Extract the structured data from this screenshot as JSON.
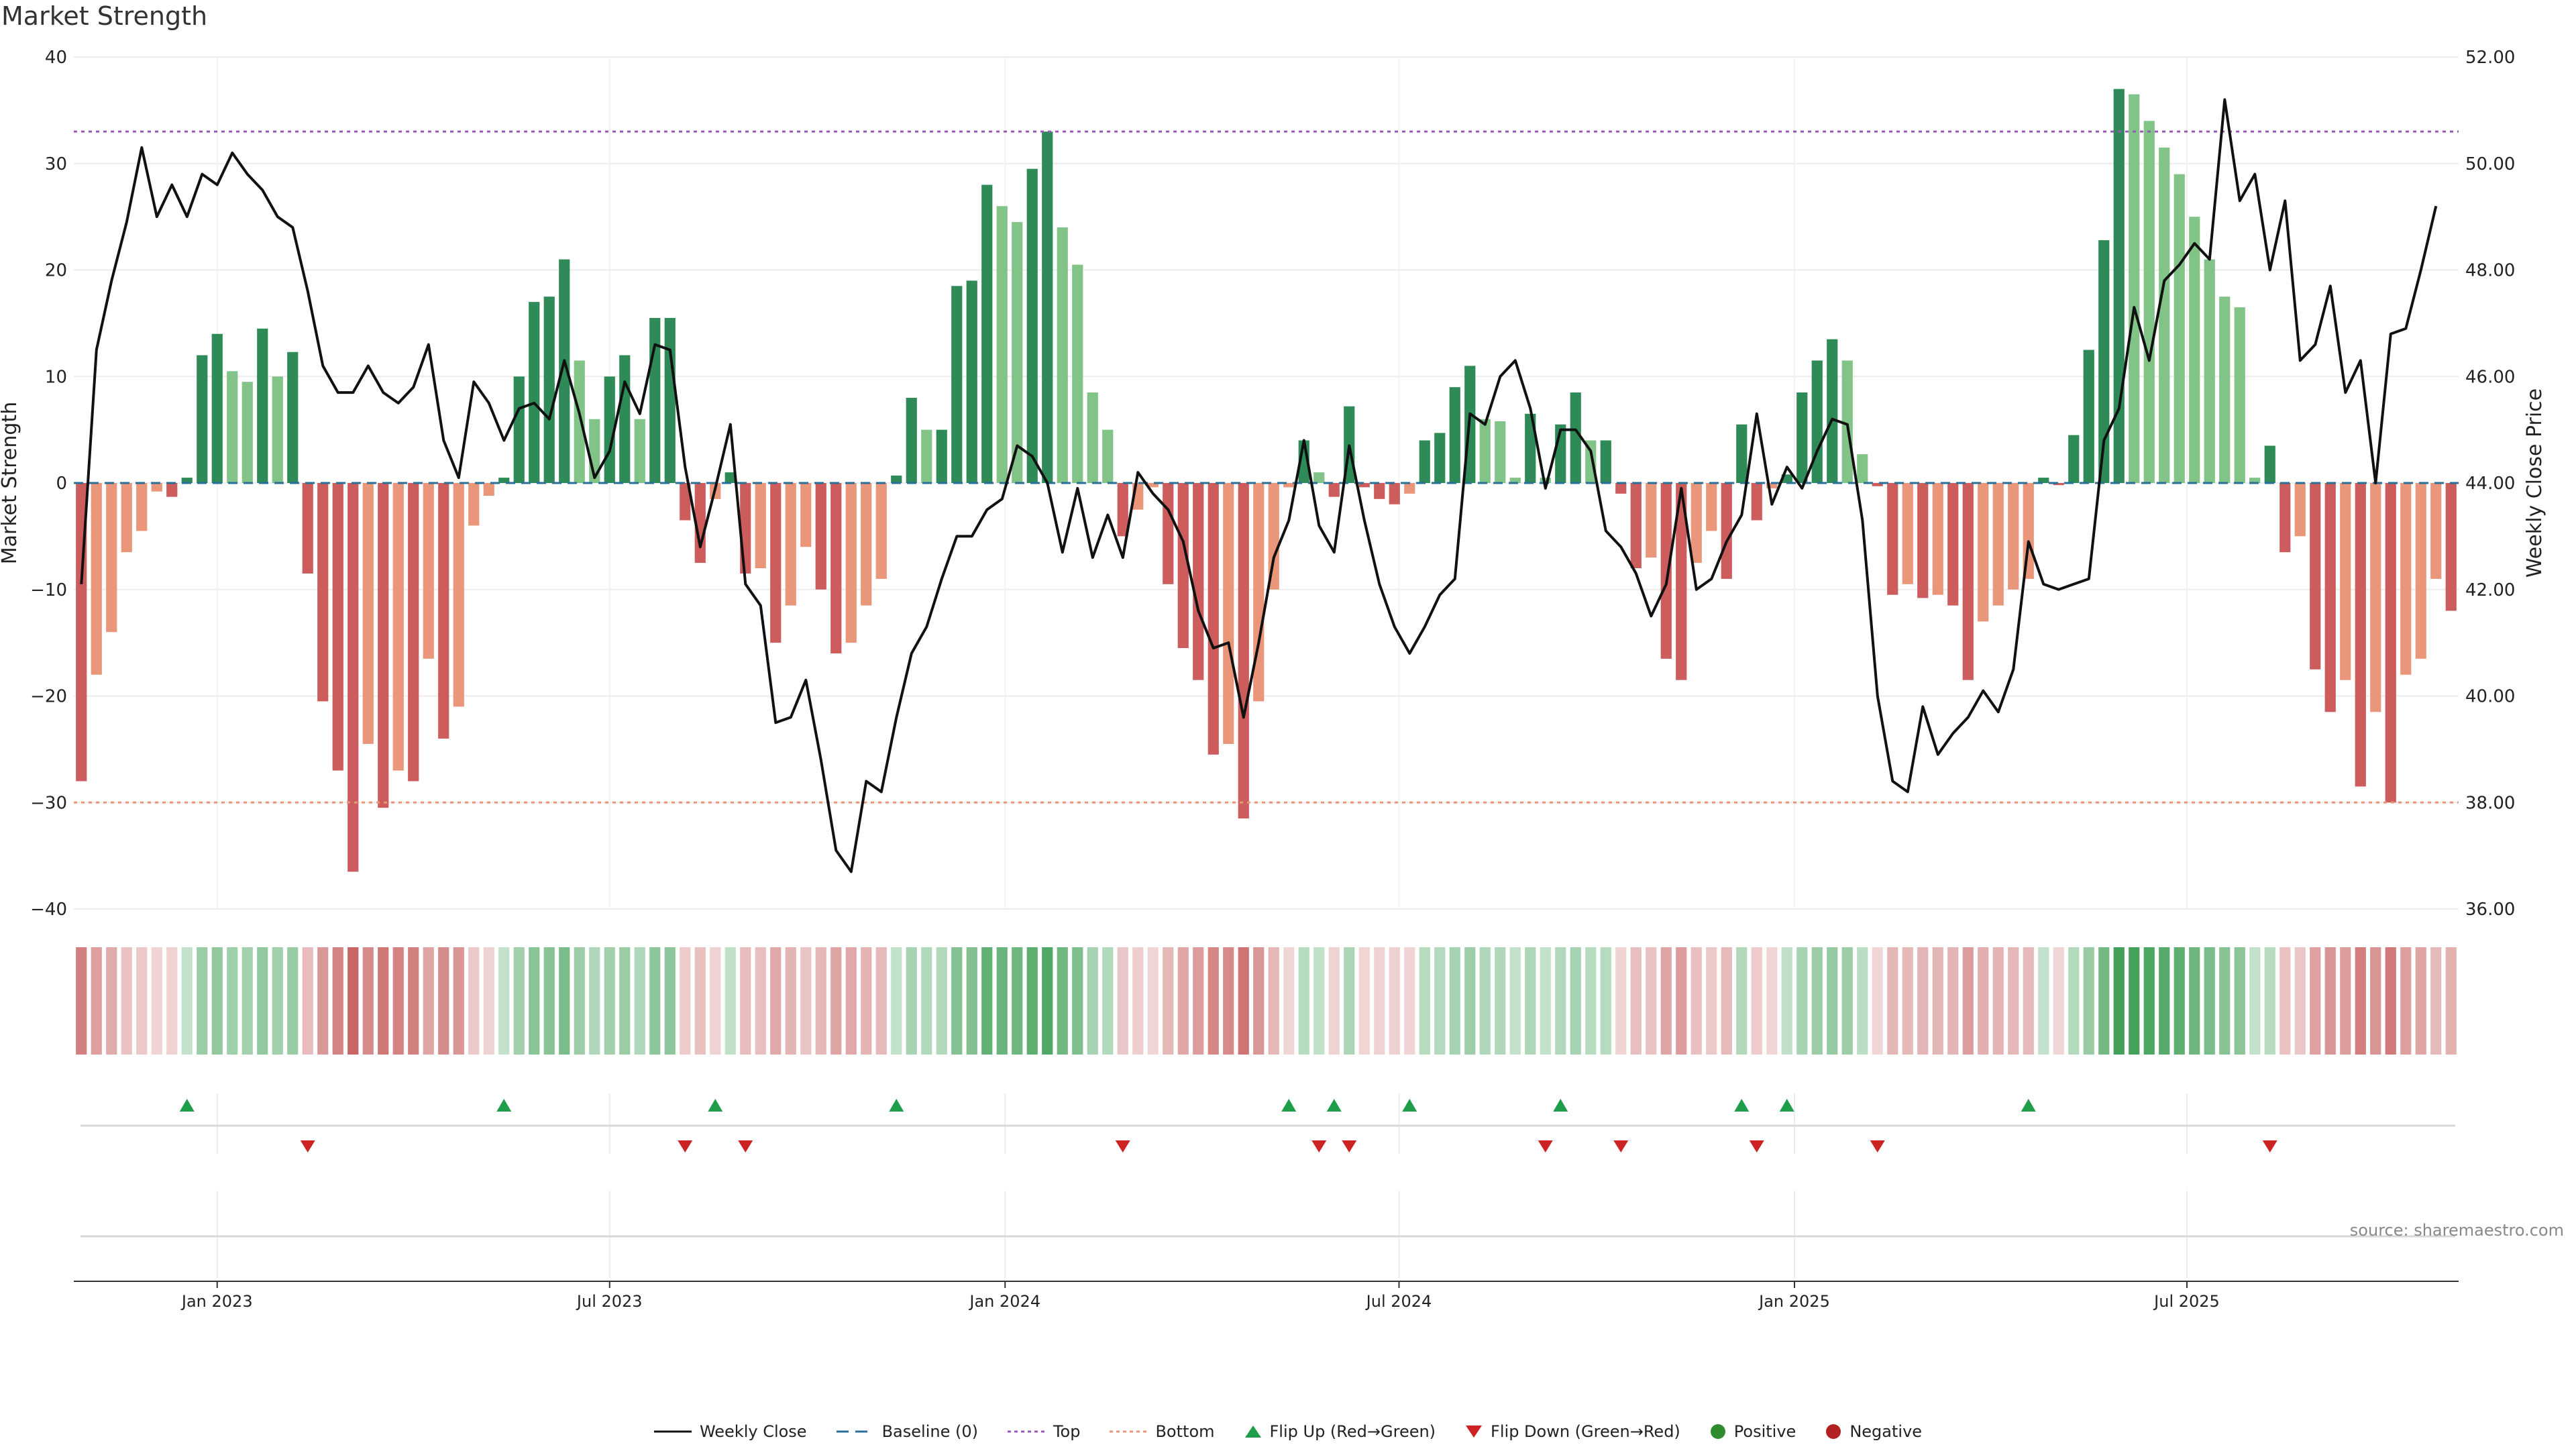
{
  "chart_data": {
    "type": "bar",
    "title": "Market Strength",
    "ylabel_left": "Market Strength",
    "ylabel_right": "Weekly Close Price",
    "ylim_left": [
      -40,
      40
    ],
    "ylim_right": [
      36,
      52
    ],
    "yticks_left": [
      "40",
      "30",
      "20",
      "10",
      "0",
      "−10",
      "−20",
      "−30",
      "−40"
    ],
    "yticks_right": [
      "52.00",
      "50.00",
      "48.00",
      "46.00",
      "44.00",
      "42.00",
      "40.00",
      "38.00",
      "36.00"
    ],
    "xticks": [
      {
        "label": "Jan 2023",
        "week": 9.5
      },
      {
        "label": "Jul 2023",
        "week": 35.5
      },
      {
        "label": "Jan 2024",
        "week": 61.7
      },
      {
        "label": "Jul 2024",
        "week": 87.8
      },
      {
        "label": "Jan 2025",
        "week": 114.0
      },
      {
        "label": "Jul 2025",
        "week": 140.0
      }
    ],
    "top_line": 33,
    "bottom_line": -30,
    "strength": [
      -28,
      -18,
      -14,
      -6.5,
      -4.5,
      -0.8,
      -1.3,
      0.5,
      12,
      14,
      10.5,
      9.5,
      14.5,
      10,
      12.3,
      -8.5,
      -20.5,
      -27,
      -36.5,
      -24.5,
      -30.5,
      -27,
      -28,
      -16.5,
      -24,
      -21,
      -4,
      -1.2,
      0.5,
      10,
      17,
      17.5,
      21,
      11.5,
      6,
      10,
      12,
      6,
      15.5,
      15.5,
      -3.5,
      -7.5,
      -1.5,
      1,
      -8.5,
      -8,
      -15,
      -11.5,
      -6,
      -10,
      -16,
      -15,
      -11.5,
      -9,
      0.7,
      8,
      5,
      5,
      18.5,
      19,
      28,
      26,
      24.5,
      29.5,
      33,
      24,
      20.5,
      8.5,
      5,
      -5,
      -2.5,
      -0.4,
      -9.5,
      -15.5,
      -18.5,
      -25.5,
      -24.5,
      -31.5,
      -20.5,
      -10,
      -0.4,
      4,
      1,
      -1.3,
      7.2,
      -0.4,
      -1.5,
      -2,
      -1,
      4,
      4.7,
      9,
      11,
      6,
      5.8,
      0.5,
      6.5,
      0.5,
      5.5,
      8.5,
      4,
      4,
      -1,
      -8,
      -7,
      -16.5,
      -18.5,
      -7.5,
      -4.5,
      -9,
      5.5,
      -3.5,
      -0.5,
      0.8,
      8.5,
      11.5,
      13.5,
      11.5,
      2.7,
      -0.3,
      -10.5,
      -9.5,
      -10.8,
      -10.5,
      -11.5,
      -18.5,
      -13,
      -11.5,
      -10,
      -9,
      0.5,
      -0.2,
      4.5,
      12.5,
      22.8,
      37,
      36.5,
      34,
      31.5,
      29,
      25,
      21,
      17.5,
      16.5,
      0.5,
      3.5,
      -6.5,
      -5,
      -17.5,
      -21.5,
      -18.5,
      -28.5,
      -21.5,
      -30,
      -18,
      -16.5,
      -9,
      -12
    ],
    "weekly_close": [
      42.1,
      46.5,
      47.8,
      48.9,
      50.3,
      49.0,
      49.6,
      49.0,
      49.8,
      49.6,
      50.2,
      49.8,
      49.5,
      49.0,
      48.8,
      47.6,
      46.2,
      45.7,
      45.7,
      46.2,
      45.7,
      45.5,
      45.8,
      46.6,
      44.8,
      44.1,
      45.9,
      45.5,
      44.8,
      45.4,
      45.5,
      45.2,
      46.3,
      45.3,
      44.1,
      44.6,
      45.9,
      45.3,
      46.6,
      46.5,
      44.3,
      42.8,
      43.9,
      45.1,
      42.1,
      41.7,
      39.5,
      39.6,
      40.3,
      38.8,
      37.1,
      36.7,
      38.4,
      38.2,
      39.6,
      40.8,
      41.3,
      42.2,
      43.0,
      43.0,
      43.5,
      43.7,
      44.7,
      44.5,
      44.0,
      42.7,
      43.9,
      42.6,
      43.4,
      42.6,
      44.2,
      43.8,
      43.5,
      42.9,
      41.6,
      40.9,
      41.0,
      39.6,
      41.0,
      42.6,
      43.3,
      44.8,
      43.2,
      42.7,
      44.7,
      43.3,
      42.1,
      41.3,
      40.8,
      41.3,
      41.9,
      42.2,
      45.3,
      45.1,
      46.0,
      46.3,
      45.4,
      43.9,
      45.0,
      45.0,
      44.6,
      43.1,
      42.8,
      42.3,
      41.5,
      42.1,
      43.9,
      42.0,
      42.2,
      42.9,
      43.4,
      45.3,
      43.6,
      44.3,
      43.9,
      44.6,
      45.2,
      45.1,
      43.3,
      40.0,
      38.4,
      38.2,
      39.8,
      38.9,
      39.3,
      39.6,
      40.1,
      39.7,
      40.5,
      42.9,
      42.1,
      42.0,
      42.1,
      42.2,
      44.8,
      45.4,
      47.3,
      46.3,
      47.8,
      48.1,
      48.5,
      48.2,
      51.2,
      49.3,
      49.8,
      48.0,
      49.3,
      46.3,
      46.6,
      47.7,
      45.7,
      46.3,
      44.0,
      46.8,
      46.9,
      48.0,
      49.2
    ],
    "flip_up_weeks": [
      7,
      28,
      42,
      54,
      80,
      83,
      88,
      98,
      110,
      113,
      129
    ],
    "flip_down_weeks": [
      15,
      40,
      44,
      69,
      82,
      84,
      97,
      102,
      111,
      119,
      145
    ],
    "legend": [
      "Weekly Close",
      "Baseline (0)",
      "Top",
      "Bottom",
      "Flip Up (Red→Green)",
      "Flip Down (Green→Red)",
      "Positive",
      "Negative"
    ],
    "source": "source: sharemaestro.com",
    "colors": {
      "strong_positive": "#2e8b57",
      "weak_positive": "#82c388",
      "strong_negative": "#cd5c5c",
      "weak_negative": "#e9967a",
      "close_line": "#111111",
      "baseline": "#2a6f97",
      "top": "#9b59b6",
      "bottom": "#e9967a",
      "flip_up": "#1e9e4a",
      "flip_down": "#cc2222",
      "positive_dot": "#2e8b2e",
      "negative_dot": "#b22222"
    }
  }
}
